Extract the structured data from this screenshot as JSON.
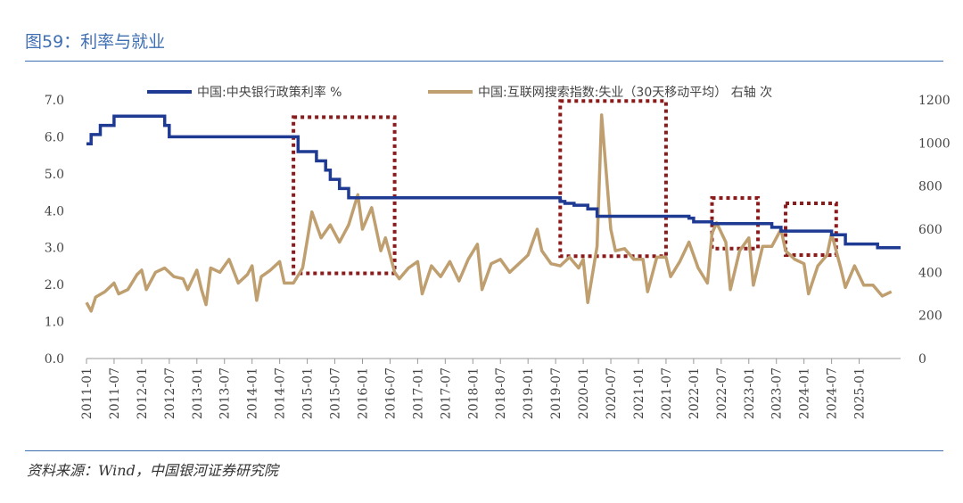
{
  "header": {
    "title": "图59：利率与就业"
  },
  "footer": {
    "source": "资料来源：Wind，中国银河证券研究院"
  },
  "colors": {
    "blue_series": "#1f3a93",
    "tan_series": "#bf9f6f",
    "highlight_box": "#8b1a1a",
    "frame_line": "#3f6fb3"
  },
  "chart_data": {
    "type": "line",
    "title": "",
    "xlabel": "",
    "ylabel": "",
    "y_left": {
      "ylim": [
        0,
        7
      ],
      "ticks": [
        "0.0",
        "1.0",
        "2.0",
        "3.0",
        "4.0",
        "5.0",
        "6.0",
        "7.0"
      ]
    },
    "y_right": {
      "ylim": [
        0,
        1200
      ],
      "ticks": [
        "0",
        "200",
        "400",
        "600",
        "800",
        "1000",
        "1200"
      ]
    },
    "x_ticks": [
      "2011-01",
      "2011-07",
      "2012-01",
      "2012-07",
      "2013-01",
      "2013-07",
      "2014-01",
      "2014-07",
      "2015-01",
      "2015-07",
      "2016-01",
      "2016-07",
      "2017-01",
      "2017-07",
      "2018-01",
      "2018-07",
      "2019-01",
      "2019-07",
      "2020-01",
      "2020-07",
      "2021-01",
      "2021-07",
      "2022-01",
      "2022-07",
      "2023-01",
      "2023-07",
      "2024-01",
      "2024-07",
      "2025-01"
    ],
    "x_range": [
      "2011-01",
      "2025-10"
    ],
    "legend_position": "top",
    "grid": false,
    "series": [
      {
        "name": "中国:中央银行政策利率 %",
        "axis": "left",
        "style": "step",
        "points": [
          [
            "2011-01",
            5.81
          ],
          [
            "2011-02",
            6.06
          ],
          [
            "2011-04",
            6.31
          ],
          [
            "2011-07",
            6.56
          ],
          [
            "2012-06",
            6.31
          ],
          [
            "2012-07",
            6.0
          ],
          [
            "2014-11",
            5.6
          ],
          [
            "2015-03",
            5.35
          ],
          [
            "2015-05",
            5.1
          ],
          [
            "2015-06",
            4.85
          ],
          [
            "2015-08",
            4.6
          ],
          [
            "2015-10",
            4.35
          ],
          [
            "2019-08",
            4.25
          ],
          [
            "2019-09",
            4.2
          ],
          [
            "2019-11",
            4.15
          ],
          [
            "2020-02",
            4.05
          ],
          [
            "2020-04",
            3.85
          ],
          [
            "2021-12",
            3.8
          ],
          [
            "2022-01",
            3.7
          ],
          [
            "2022-05",
            3.65
          ],
          [
            "2022-08",
            3.65
          ],
          [
            "2023-06",
            3.55
          ],
          [
            "2023-08",
            3.45
          ],
          [
            "2024-02",
            3.45
          ],
          [
            "2024-07",
            3.35
          ],
          [
            "2024-10",
            3.1
          ],
          [
            "2025-05",
            3.0
          ],
          [
            "2025-10",
            3.0
          ]
        ]
      },
      {
        "name": "中国:互联网搜索指数:失业（30天移动平均） 右轴 次",
        "axis": "right",
        "style": "line",
        "points": [
          [
            "2011-01",
            260
          ],
          [
            "2011-02",
            220
          ],
          [
            "2011-03",
            285
          ],
          [
            "2011-05",
            310
          ],
          [
            "2011-07",
            350
          ],
          [
            "2011-08",
            300
          ],
          [
            "2011-10",
            320
          ],
          [
            "2011-12",
            390
          ],
          [
            "2012-01",
            410
          ],
          [
            "2012-02",
            320
          ],
          [
            "2012-04",
            400
          ],
          [
            "2012-06",
            420
          ],
          [
            "2012-08",
            380
          ],
          [
            "2012-10",
            370
          ],
          [
            "2012-11",
            320
          ],
          [
            "2013-01",
            410
          ],
          [
            "2013-02",
            320
          ],
          [
            "2013-03",
            250
          ],
          [
            "2013-04",
            420
          ],
          [
            "2013-06",
            400
          ],
          [
            "2013-08",
            460
          ],
          [
            "2013-10",
            350
          ],
          [
            "2013-12",
            390
          ],
          [
            "2014-01",
            430
          ],
          [
            "2014-02",
            270
          ],
          [
            "2014-03",
            380
          ],
          [
            "2014-05",
            410
          ],
          [
            "2014-07",
            450
          ],
          [
            "2014-08",
            350
          ],
          [
            "2014-10",
            350
          ],
          [
            "2014-12",
            420
          ],
          [
            "2015-02",
            680
          ],
          [
            "2015-04",
            560
          ],
          [
            "2015-06",
            620
          ],
          [
            "2015-08",
            540
          ],
          [
            "2015-10",
            620
          ],
          [
            "2015-12",
            760
          ],
          [
            "2016-01",
            600
          ],
          [
            "2016-03",
            700
          ],
          [
            "2016-05",
            500
          ],
          [
            "2016-06",
            560
          ],
          [
            "2016-08",
            400
          ],
          [
            "2016-09",
            370
          ],
          [
            "2016-11",
            420
          ],
          [
            "2017-01",
            450
          ],
          [
            "2017-02",
            300
          ],
          [
            "2017-04",
            430
          ],
          [
            "2017-06",
            380
          ],
          [
            "2017-08",
            450
          ],
          [
            "2017-10",
            360
          ],
          [
            "2017-12",
            460
          ],
          [
            "2018-02",
            530
          ],
          [
            "2018-03",
            320
          ],
          [
            "2018-05",
            440
          ],
          [
            "2018-07",
            460
          ],
          [
            "2018-09",
            400
          ],
          [
            "2018-11",
            440
          ],
          [
            "2019-01",
            480
          ],
          [
            "2019-03",
            600
          ],
          [
            "2019-04",
            500
          ],
          [
            "2019-06",
            440
          ],
          [
            "2019-08",
            430
          ],
          [
            "2019-10",
            470
          ],
          [
            "2019-12",
            420
          ],
          [
            "2020-01",
            460
          ],
          [
            "2020-02",
            260
          ],
          [
            "2020-04",
            520
          ],
          [
            "2020-05",
            1130
          ],
          [
            "2020-07",
            600
          ],
          [
            "2020-08",
            500
          ],
          [
            "2020-10",
            510
          ],
          [
            "2020-12",
            460
          ],
          [
            "2021-02",
            460
          ],
          [
            "2021-03",
            310
          ],
          [
            "2021-05",
            470
          ],
          [
            "2021-07",
            470
          ],
          [
            "2021-08",
            380
          ],
          [
            "2021-10",
            450
          ],
          [
            "2021-12",
            540
          ],
          [
            "2022-02",
            420
          ],
          [
            "2022-04",
            350
          ],
          [
            "2022-05",
            580
          ],
          [
            "2022-06",
            630
          ],
          [
            "2022-08",
            540
          ],
          [
            "2022-09",
            320
          ],
          [
            "2022-11",
            500
          ],
          [
            "2023-01",
            560
          ],
          [
            "2023-02",
            340
          ],
          [
            "2023-04",
            520
          ],
          [
            "2023-06",
            520
          ],
          [
            "2023-08",
            600
          ],
          [
            "2023-09",
            500
          ],
          [
            "2023-11",
            460
          ],
          [
            "2024-01",
            440
          ],
          [
            "2024-02",
            300
          ],
          [
            "2024-04",
            430
          ],
          [
            "2024-06",
            480
          ],
          [
            "2024-07",
            580
          ],
          [
            "2024-09",
            420
          ],
          [
            "2024-10",
            330
          ],
          [
            "2024-12",
            430
          ],
          [
            "2025-02",
            340
          ],
          [
            "2025-04",
            340
          ],
          [
            "2025-06",
            290
          ],
          [
            "2025-08",
            310
          ]
        ]
      }
    ],
    "highlight_regions": [
      {
        "x": [
          "2014-10",
          "2016-08"
        ],
        "y_right": [
          395,
          1120
        ]
      },
      {
        "x": [
          "2019-08",
          "2021-07"
        ],
        "y_right": [
          475,
          1195
        ]
      },
      {
        "x": [
          "2022-05",
          "2023-03"
        ],
        "y_right": [
          510,
          745
        ]
      },
      {
        "x": [
          "2023-09",
          "2024-08"
        ],
        "y_right": [
          480,
          720
        ]
      }
    ]
  }
}
